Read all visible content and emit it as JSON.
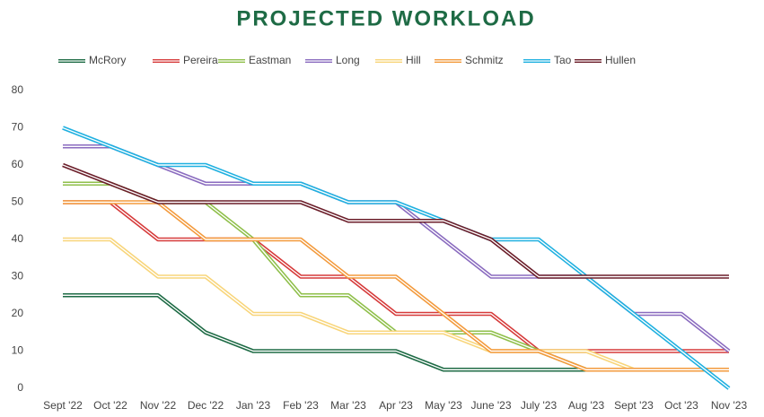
{
  "chart_data": {
    "type": "line",
    "title": "PROJECTED WORKLOAD",
    "categories": [
      "Sept '22",
      "Oct '22",
      "Nov '22",
      "Dec '22",
      "Jan '23",
      "Feb '23",
      "Mar '23",
      "Apr '23",
      "May '23",
      "June '23",
      "July '23",
      "Aug '23",
      "Sept '23",
      "Oct '23",
      "Nov '23"
    ],
    "series": [
      {
        "name": "McRory",
        "color": "#1e6b45",
        "values": [
          25,
          25,
          25,
          15,
          10,
          10,
          10,
          10,
          5,
          5,
          5,
          5,
          5,
          5,
          5
        ]
      },
      {
        "name": "Pereira",
        "color": "#d63a3a",
        "values": [
          50,
          50,
          40,
          40,
          40,
          30,
          30,
          20,
          20,
          20,
          10,
          10,
          10,
          10,
          10
        ]
      },
      {
        "name": "Eastman",
        "color": "#8fbf4a",
        "values": [
          55,
          55,
          50,
          50,
          40,
          25,
          25,
          15,
          15,
          15,
          10,
          5,
          5,
          5,
          5
        ]
      },
      {
        "name": "Long",
        "color": "#8a6bbf",
        "values": [
          65,
          65,
          60,
          55,
          55,
          55,
          50,
          50,
          40,
          30,
          30,
          30,
          20,
          20,
          10
        ]
      },
      {
        "name": "Hill",
        "color": "#f8d57a",
        "values": [
          40,
          40,
          30,
          30,
          20,
          20,
          15,
          15,
          15,
          10,
          10,
          10,
          5,
          5,
          5
        ]
      },
      {
        "name": "Schmitz",
        "color": "#f39a3c",
        "values": [
          50,
          50,
          50,
          40,
          40,
          40,
          30,
          30,
          20,
          10,
          10,
          5,
          5,
          5,
          5
        ]
      },
      {
        "name": "Tao",
        "color": "#1fb0e0",
        "values": [
          70,
          65,
          60,
          60,
          55,
          55,
          50,
          50,
          45,
          40,
          40,
          30,
          20,
          10,
          0
        ]
      },
      {
        "name": "Hullen",
        "color": "#6b1e2a",
        "values": [
          60,
          55,
          50,
          50,
          50,
          50,
          45,
          45,
          45,
          40,
          30,
          30,
          30,
          30,
          30
        ]
      }
    ],
    "ylim": [
      0,
      80
    ],
    "yticks": [
      0,
      10,
      20,
      30,
      40,
      50,
      60,
      70,
      80
    ],
    "grid": false,
    "legend": "top"
  }
}
